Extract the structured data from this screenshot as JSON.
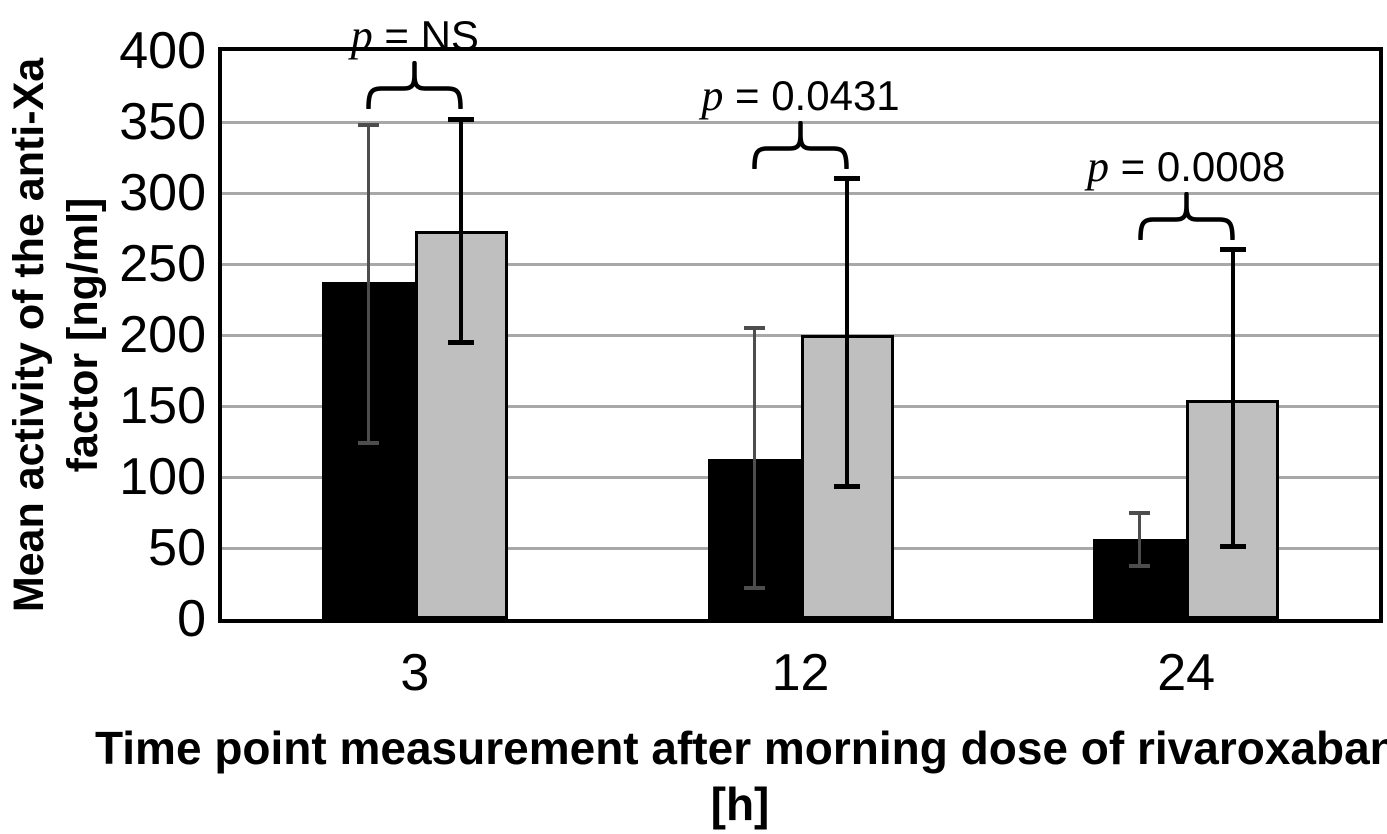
{
  "chart_data": {
    "type": "bar",
    "title": "",
    "categories": [
      "3",
      "12",
      "24"
    ],
    "series": [
      {
        "name": "black",
        "fill": "#000000",
        "error_color": "#4d4d4d",
        "values": [
          237,
          113,
          56
        ],
        "error_low": [
          124,
          22,
          37
        ],
        "error_high": [
          348,
          205,
          75
        ]
      },
      {
        "name": "gray",
        "fill": "#bfbfbf",
        "error_color": "#000000",
        "values": [
          273,
          200,
          154
        ],
        "error_low": [
          195,
          93,
          51
        ],
        "error_high": [
          352,
          310,
          260
        ]
      }
    ],
    "annotations": [
      {
        "label": "p = NS",
        "group": 0
      },
      {
        "label": "p = 0.0431",
        "group": 1
      },
      {
        "label": "p = 0.0008",
        "group": 2
      }
    ],
    "xlabel": "Time point measurement after morning dose of rivaroxaban [h]",
    "xlabel_lines": [
      "Time point measurement after morning dose of rivaroxaban",
      "[h]"
    ],
    "ylabel": "Mean activity of the anti-Xa factor [ng/ml]",
    "ylabel_lines": [
      "Mean activity of the anti-Xa",
      "factor [ng/ml]"
    ],
    "ylim": [
      0,
      400
    ],
    "yticks": [
      0,
      50,
      100,
      150,
      200,
      250,
      300,
      350,
      400
    ],
    "grid": true,
    "legend": false,
    "gridline_color": "#a8a8a8",
    "frame_color": "#000000"
  }
}
